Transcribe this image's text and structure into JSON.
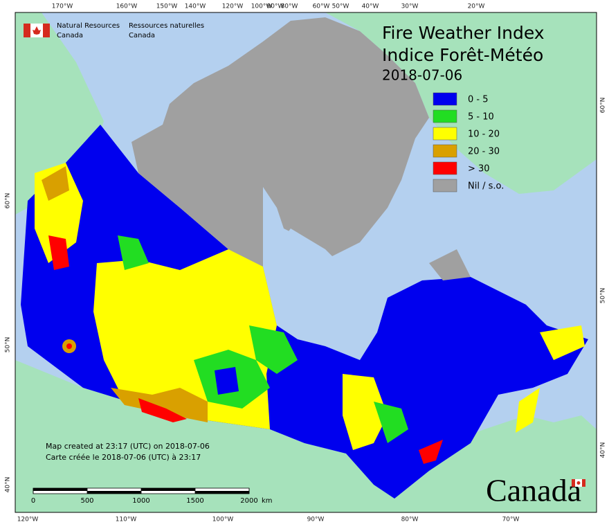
{
  "header": {
    "org_en": [
      "Natural Resources",
      "Canada"
    ],
    "org_fr": [
      "Ressources naturelles",
      "Canada"
    ]
  },
  "title": {
    "en": "Fire Weather Index",
    "fr": "Indice Forêt-Météo",
    "date": "2018-07-06"
  },
  "legend": [
    {
      "label": "0 - 5",
      "color": "#0000ee"
    },
    {
      "label": "5 - 10",
      "color": "#22dd22"
    },
    {
      "label": "10 - 20",
      "color": "#ffff00"
    },
    {
      "label": "20 - 30",
      "color": "#d9a000"
    },
    {
      "label": "> 30",
      "color": "#ff0000"
    },
    {
      "label": "Nil / s.o.",
      "color": "#a0a0a0"
    }
  ],
  "top_labels": [
    "170°W",
    "160°W",
    "150°W",
    "140°W",
    "120°W",
    "100°W",
    "90°W",
    "80°W",
    "60°W",
    "50°W",
    "40°W",
    "30°W",
    "20°W"
  ],
  "bottom_labels": [
    "120°W",
    "110°W",
    "100°W",
    "90°W",
    "80°W",
    "70°W"
  ],
  "left_labels": [
    "60°N",
    "50°N",
    "40°N"
  ],
  "right_labels": [
    "60°N",
    "50°N",
    "40°N"
  ],
  "notes": [
    "Map created at 23:17 (UTC) on 2018-07-06",
    "Carte créée le 2018-07-06 (UTC) à 23:17"
  ],
  "scale": {
    "ticks": [
      0,
      500,
      1000,
      1500,
      2000
    ],
    "unit": "km"
  },
  "wordmark": "Canada"
}
